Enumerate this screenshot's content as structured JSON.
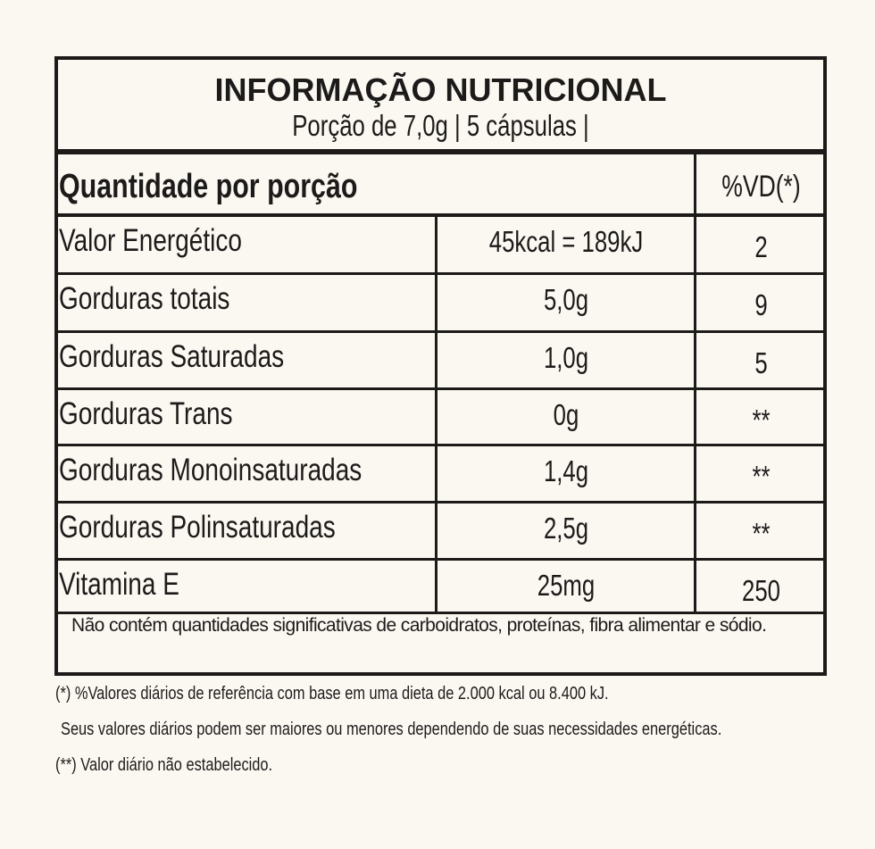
{
  "header": {
    "title": "INFORMAÇÃO NUTRICIONAL",
    "serving": "Porção de 7,0g | 5 cápsulas |"
  },
  "table": {
    "column_header": "Quantidade por porção",
    "vd_header": "%VD(*)",
    "rows": [
      {
        "name": "Valor Energético",
        "amount": "45kcal = 189kJ",
        "vd": "2"
      },
      {
        "name": "Gorduras totais",
        "amount": "5,0g",
        "vd": "9"
      },
      {
        "name": "Gorduras Saturadas",
        "amount": "1,0g",
        "vd": "5"
      },
      {
        "name": "Gorduras Trans",
        "amount": "0g",
        "vd": "**"
      },
      {
        "name": "Gorduras Monoinsaturadas",
        "amount": "1,4g",
        "vd": "**"
      },
      {
        "name": "Gorduras Polinsaturadas",
        "amount": "2,5g",
        "vd": "**"
      },
      {
        "name": "Vitamina E",
        "amount": "25mg",
        "vd": "250"
      }
    ],
    "note": "Não contém quantidades significativas de carboidratos, proteínas, fibra alimentar e sódio."
  },
  "footnotes": [
    "(*) %Valores diários de referência com base em uma dieta de 2.000 kcal ou 8.400 kJ.",
    "Seus valores diários podem ser maiores ou menores dependendo de suas necessidades energéticas.",
    "(**) Valor diário não estabelecido."
  ],
  "colors": {
    "background": "#fbf8f2",
    "ink": "#1d1b1a"
  }
}
